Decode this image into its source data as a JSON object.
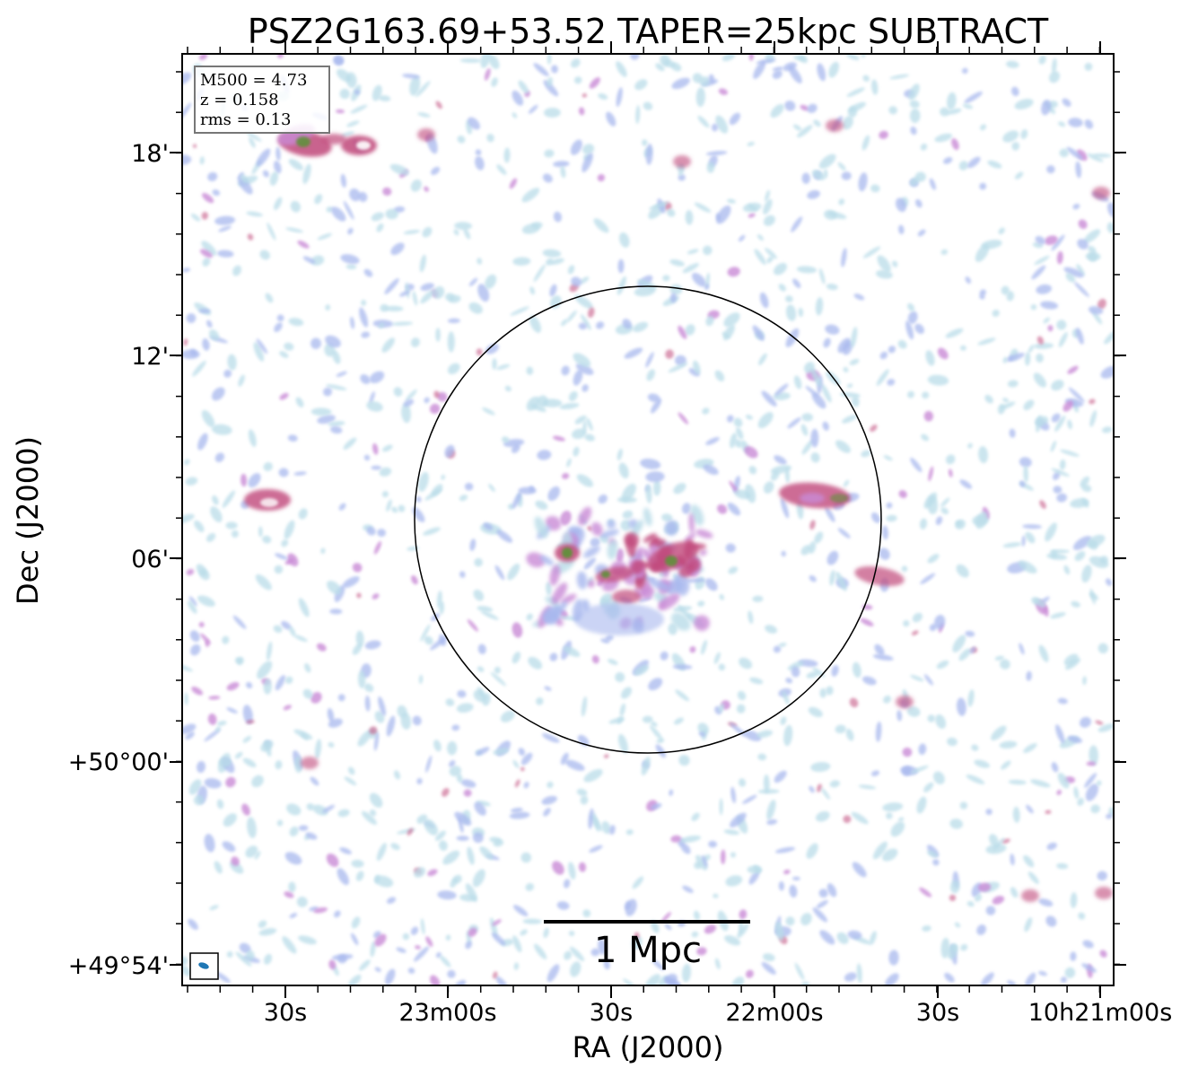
{
  "figure": {
    "title": "PSZ2G163.69+53.52 TAPER=25kpc SUBTRACT",
    "xlabel": "RA (J2000)",
    "ylabel": "Dec (J2000)",
    "info_box": {
      "lines": [
        "M500 = 4.73",
        "z = 0.158",
        "rms = 0.13"
      ]
    },
    "scale_bar_label": "1 Mpc",
    "ra_ticks": [
      "30s",
      "23m00s",
      "30s",
      "22m00s",
      "30s",
      "10h21m00s"
    ],
    "dec_ticks": [
      "18'",
      "12'",
      "06'",
      "+50°00'",
      "+49°54'"
    ],
    "colors": {
      "faint": "#b9dce8",
      "low": "#a8b8ee",
      "mid": "#c98bd6",
      "high": "#c0487a",
      "peak": "#5f8f3a"
    },
    "icons": {
      "beam": "beam-ellipse-icon",
      "circle": "r500-circle-icon"
    }
  }
}
